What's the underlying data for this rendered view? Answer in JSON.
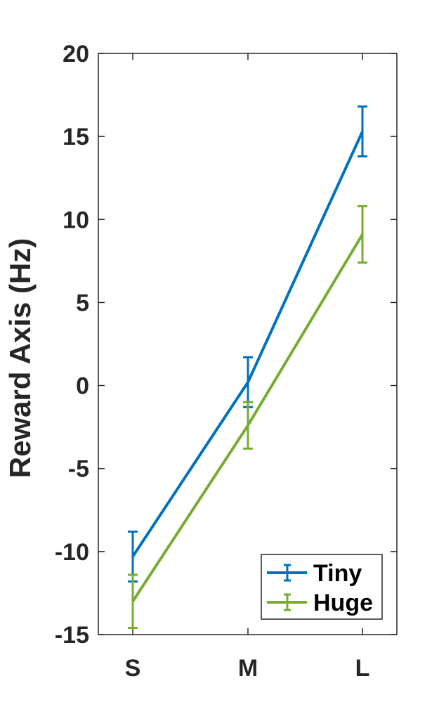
{
  "chart_data": {
    "type": "line",
    "categories": [
      "S",
      "M",
      "L"
    ],
    "ylabel": "Reward Axis (Hz)",
    "xlabel": "",
    "ylim": [
      -15,
      20
    ],
    "yticks": [
      -15,
      -10,
      -5,
      0,
      5,
      10,
      15,
      20
    ],
    "grid": false,
    "legend_position": "bottom-right",
    "series": [
      {
        "name": "Tiny",
        "color": "#0072BD",
        "values": [
          -10.3,
          0.2,
          15.3
        ],
        "errors": [
          1.5,
          1.5,
          1.5
        ]
      },
      {
        "name": "Huge",
        "color": "#77AC30",
        "values": [
          -13.0,
          -2.4,
          9.1
        ],
        "errors": [
          1.6,
          1.4,
          1.7
        ]
      }
    ]
  }
}
